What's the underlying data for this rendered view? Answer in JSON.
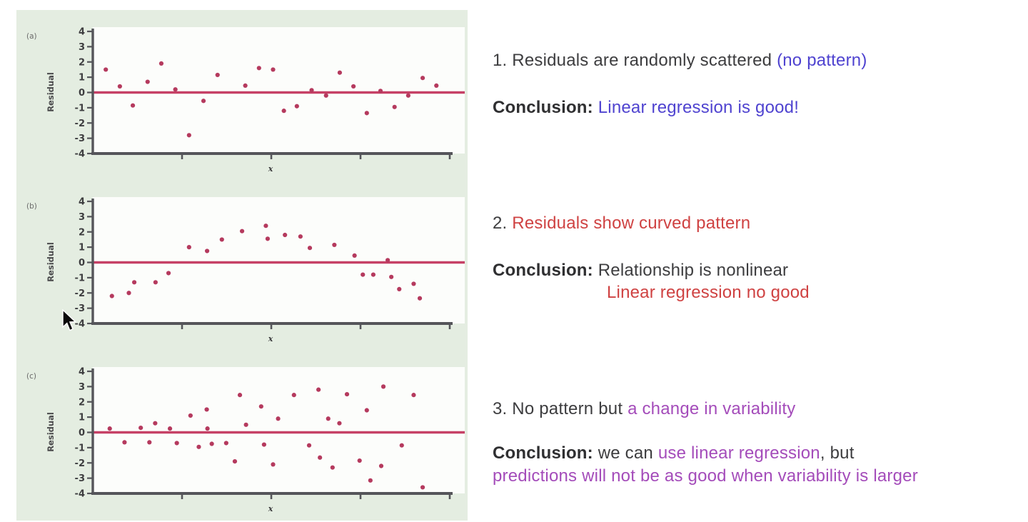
{
  "colors": {
    "panel_background": "#e4ede1",
    "plot_background": "#fcfdfb",
    "axis": "#55555a",
    "zero_line": "#c64166",
    "point": "#b53a5e",
    "text_dark": "#3d3d3f",
    "text_blue": "#4f43d0",
    "text_red": "#cf4242",
    "text_purple": "#a44cba"
  },
  "chart_data": [
    {
      "type": "scatter",
      "corner_label": "(a)",
      "xlabel": "x",
      "ylabel": "Residual",
      "xlim": [
        0,
        100
      ],
      "ylim": [
        -4,
        4
      ],
      "yticks": [
        4,
        3,
        2,
        1,
        0,
        -1,
        -2,
        -3,
        -4
      ],
      "x_ticks_unlabeled": 4,
      "zero_line": 0,
      "grid": "off",
      "shape_hint": "residuals randomly scattered around zero, no pattern",
      "points": [
        [
          3.6,
          1.5
        ],
        [
          7.5,
          0.4
        ],
        [
          11.1,
          -0.85
        ],
        [
          15.2,
          0.7
        ],
        [
          19,
          1.9
        ],
        [
          22.9,
          0.2
        ],
        [
          26.7,
          -2.8
        ],
        [
          30.7,
          -0.55
        ],
        [
          34.6,
          1.15
        ],
        [
          42.3,
          0.45
        ],
        [
          46.1,
          1.6
        ],
        [
          50,
          1.5
        ],
        [
          53,
          -1.2
        ],
        [
          56.6,
          -0.9
        ],
        [
          60.7,
          0.15
        ],
        [
          64.7,
          -0.2
        ],
        [
          68.5,
          1.3
        ],
        [
          72.3,
          0.4
        ],
        [
          76,
          -1.35
        ],
        [
          79.8,
          0.1
        ],
        [
          83.7,
          -0.95
        ],
        [
          87.5,
          -0.2
        ],
        [
          91.5,
          0.95
        ],
        [
          95.3,
          0.45
        ]
      ]
    },
    {
      "type": "scatter",
      "corner_label": "(b)",
      "xlabel": "x",
      "ylabel": "Residual",
      "xlim": [
        0,
        100
      ],
      "ylim": [
        -4,
        4
      ],
      "yticks": [
        4,
        3,
        2,
        1,
        0,
        -1,
        -2,
        -3,
        -4
      ],
      "x_ticks_unlabeled": 4,
      "zero_line": 0,
      "grid": "off",
      "shape_hint": "curved inverted-U pattern: negative, then positive, then negative",
      "points": [
        [
          5.3,
          -2.2
        ],
        [
          10,
          -2.0
        ],
        [
          11.5,
          -1.3
        ],
        [
          17.4,
          -1.3
        ],
        [
          21,
          -0.7
        ],
        [
          26.7,
          1.0
        ],
        [
          31.7,
          0.75
        ],
        [
          35.8,
          1.5
        ],
        [
          41.4,
          2.05
        ],
        [
          48,
          2.4
        ],
        [
          48.5,
          1.55
        ],
        [
          53.3,
          1.8
        ],
        [
          57.6,
          1.7
        ],
        [
          60.2,
          0.95
        ],
        [
          67,
          1.15
        ],
        [
          72.6,
          0.45
        ],
        [
          74.9,
          -0.8
        ],
        [
          77.8,
          -0.8
        ],
        [
          81.8,
          0.15
        ],
        [
          82.8,
          -0.95
        ],
        [
          85,
          -1.75
        ],
        [
          89,
          -1.4
        ],
        [
          90.7,
          -2.35
        ]
      ]
    },
    {
      "type": "scatter",
      "corner_label": "(c)",
      "xlabel": "x",
      "ylabel": "Residual",
      "xlim": [
        0,
        100
      ],
      "ylim": [
        -4,
        4
      ],
      "yticks": [
        4,
        3,
        2,
        1,
        0,
        -1,
        -2,
        -3,
        -4
      ],
      "x_ticks_unlabeled": 4,
      "zero_line": 0,
      "grid": "off",
      "shape_hint": "no pattern but variability (spread) increases from left to right",
      "points": [
        [
          4.7,
          0.25
        ],
        [
          8.8,
          -0.65
        ],
        [
          13.3,
          0.3
        ],
        [
          15.7,
          -0.65
        ],
        [
          17.3,
          0.6
        ],
        [
          21.4,
          0.25
        ],
        [
          23.3,
          -0.7
        ],
        [
          27.1,
          1.1
        ],
        [
          29.4,
          -0.95
        ],
        [
          31.6,
          1.5
        ],
        [
          31.8,
          0.25
        ],
        [
          33,
          -0.75
        ],
        [
          37,
          -0.7
        ],
        [
          39.4,
          -1.9
        ],
        [
          40.8,
          2.45
        ],
        [
          42.5,
          0.5
        ],
        [
          46.7,
          1.7
        ],
        [
          47.5,
          -0.8
        ],
        [
          50,
          -2.1
        ],
        [
          51.4,
          0.9
        ],
        [
          55.8,
          2.45
        ],
        [
          60,
          -0.85
        ],
        [
          62.6,
          2.8
        ],
        [
          63,
          -1.65
        ],
        [
          65.3,
          0.9
        ],
        [
          66.5,
          -2.3
        ],
        [
          68.4,
          0.6
        ],
        [
          70.5,
          2.5
        ],
        [
          74,
          -1.85
        ],
        [
          76,
          1.45
        ],
        [
          77,
          -3.15
        ],
        [
          80,
          -2.2
        ],
        [
          80.6,
          3.0
        ],
        [
          85.7,
          -0.85
        ],
        [
          89,
          2.45
        ],
        [
          91.5,
          -3.6
        ]
      ]
    }
  ],
  "notes": {
    "n1": {
      "line1": [
        {
          "text": "1. Residuals are randomly scattered ",
          "color": "dark"
        },
        {
          "text": "(no pattern)",
          "color": "blue"
        }
      ],
      "line2": [
        {
          "text": "Conclusion: ",
          "color": "dark",
          "bold": true
        },
        {
          "text": "Linear regression is good!",
          "color": "blue"
        }
      ]
    },
    "n2": {
      "line1": [
        {
          "text": "2. ",
          "color": "dark"
        },
        {
          "text": "Residuals show curved pattern",
          "color": "red"
        }
      ],
      "line2": [
        {
          "text": "Conclusion: ",
          "color": "dark",
          "bold": true
        },
        {
          "text": "Relationship is nonlinear",
          "color": "dark"
        }
      ],
      "line3": [
        {
          "text": "Linear regression no good",
          "color": "red"
        }
      ]
    },
    "n3": {
      "line1": [
        {
          "text": "3. No pattern but ",
          "color": "dark"
        },
        {
          "text": "a change in variability",
          "color": "purple"
        }
      ],
      "line2": [
        {
          "text": "Conclusion: ",
          "color": "dark",
          "bold": true
        },
        {
          "text": "we can ",
          "color": "dark"
        },
        {
          "text": "use linear regression",
          "color": "purple"
        },
        {
          "text": ", but",
          "color": "dark"
        }
      ],
      "line3": [
        {
          "text": "predictions will not be as good when variability is larger",
          "color": "purple"
        }
      ]
    }
  }
}
